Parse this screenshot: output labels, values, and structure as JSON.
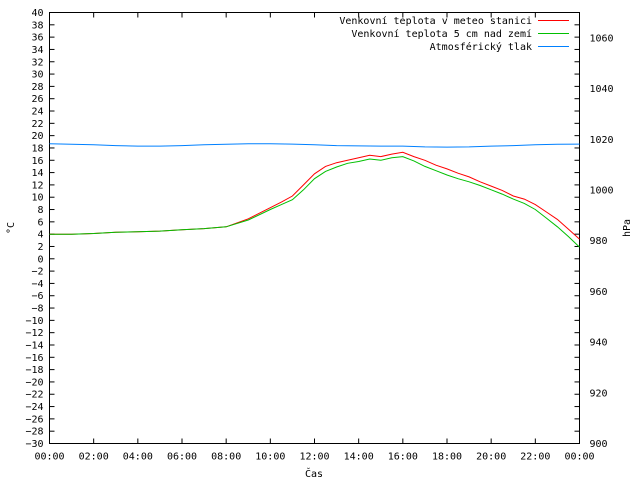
{
  "chart_data": {
    "type": "line",
    "xlabel": "Čas",
    "ylabel": "°C",
    "y2label": "hPa",
    "x_range": [
      "00:00",
      "24:00"
    ],
    "ylim": [
      -30,
      40
    ],
    "y2lim": [
      900,
      1070
    ],
    "grid": false,
    "legend_position": "top-right",
    "x_tick_labels": [
      "00:00",
      "02:00",
      "04:00",
      "06:00",
      "08:00",
      "10:00",
      "12:00",
      "14:00",
      "16:00",
      "18:00",
      "20:00",
      "22:00",
      "00:00"
    ],
    "y_ticks": [
      -30,
      -28,
      -26,
      -24,
      -22,
      -20,
      -18,
      -16,
      -14,
      -12,
      -10,
      -8,
      -6,
      -4,
      -2,
      0,
      2,
      4,
      6,
      8,
      10,
      12,
      14,
      16,
      18,
      20,
      22,
      24,
      26,
      28,
      30,
      32,
      34,
      36,
      38,
      40
    ],
    "y2_ticks": [
      900,
      920,
      940,
      960,
      980,
      1000,
      1020,
      1040,
      1060
    ],
    "series": [
      {
        "name": "Venkovní teplota v meteo stanici",
        "color": "#ff0000",
        "axis": "y",
        "x": [
          0,
          1,
          2,
          3,
          4,
          5,
          6,
          7,
          8,
          9,
          10,
          10.5,
          11,
          11.5,
          12,
          12.5,
          13,
          13.5,
          14,
          14.5,
          15,
          15.5,
          16,
          16.5,
          17,
          17.5,
          18,
          18.5,
          19,
          19.5,
          20,
          20.5,
          21,
          21.5,
          22,
          22.5,
          23,
          23.5,
          24
        ],
        "values": [
          4.0,
          4.0,
          4.1,
          4.3,
          4.4,
          4.5,
          4.7,
          4.9,
          5.2,
          6.5,
          8.3,
          9.2,
          10.2,
          12.0,
          13.8,
          15.0,
          15.6,
          16.0,
          16.4,
          16.8,
          16.6,
          17.0,
          17.3,
          16.6,
          16.0,
          15.2,
          14.6,
          13.9,
          13.3,
          12.5,
          11.8,
          11.1,
          10.2,
          9.7,
          8.8,
          7.6,
          6.4,
          4.8,
          3.2
        ]
      },
      {
        "name": "Venkovní teplota 5 cm nad zemí",
        "color": "#00c000",
        "axis": "y",
        "x": [
          0,
          1,
          2,
          3,
          4,
          5,
          6,
          7,
          8,
          9,
          10,
          10.5,
          11,
          11.5,
          12,
          12.5,
          13,
          13.5,
          14,
          14.5,
          15,
          15.5,
          16,
          16.5,
          17,
          17.5,
          18,
          18.5,
          19,
          19.5,
          20,
          20.5,
          21,
          21.5,
          22,
          22.5,
          23,
          23.5,
          24
        ],
        "values": [
          4.0,
          4.0,
          4.1,
          4.3,
          4.4,
          4.5,
          4.7,
          4.9,
          5.2,
          6.3,
          8.0,
          8.8,
          9.6,
          11.2,
          13.0,
          14.2,
          14.9,
          15.5,
          15.8,
          16.2,
          16.0,
          16.4,
          16.6,
          15.9,
          15.0,
          14.3,
          13.6,
          13.0,
          12.5,
          11.9,
          11.2,
          10.5,
          9.7,
          9.0,
          8.0,
          6.6,
          5.2,
          3.6,
          1.9
        ]
      },
      {
        "name": "Atmosférický tlak",
        "color": "#0080ff",
        "axis": "y2",
        "x": [
          0,
          1,
          2,
          3,
          4,
          5,
          6,
          7,
          8,
          9,
          10,
          11,
          12,
          13,
          14,
          15,
          16,
          17,
          18,
          19,
          20,
          21,
          22,
          23,
          24
        ],
        "values": [
          1018.2,
          1018.0,
          1017.8,
          1017.5,
          1017.3,
          1017.3,
          1017.5,
          1017.8,
          1018.0,
          1018.2,
          1018.2,
          1018.1,
          1017.8,
          1017.5,
          1017.4,
          1017.3,
          1017.3,
          1017.0,
          1016.9,
          1017.0,
          1017.3,
          1017.5,
          1017.8,
          1018.0,
          1018.1
        ]
      }
    ]
  }
}
